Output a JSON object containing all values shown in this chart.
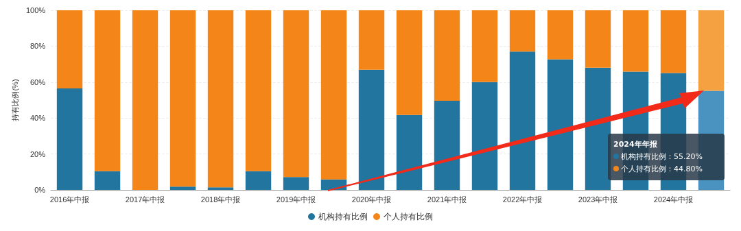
{
  "chart_data": {
    "type": "bar",
    "stacked": true,
    "ylabel": "持有比例(%)",
    "categories": [
      "2016年中报",
      null,
      "2017年中报",
      null,
      "2018年中报",
      null,
      "2019年中报",
      null,
      "2020年中报",
      null,
      "2021年中报",
      null,
      "2022年中报",
      null,
      "2023年中报",
      null,
      "2024年中报",
      null
    ],
    "series": [
      {
        "name": "机构持有比例",
        "color": "#21759f",
        "colors": [
          "#21759f",
          "#21759f",
          "#21759f",
          "#21759f",
          "#21759f",
          "#21759f",
          "#21759f",
          "#21759f",
          "#21759f",
          "#21759f",
          "#21759f",
          "#21759f",
          "#21759f",
          "#21759f",
          "#21759f",
          "#21759f",
          "#21759f",
          "#4a93c0"
        ],
        "values": [
          56.5,
          10.4,
          0,
          1.8,
          1.4,
          10.4,
          7.2,
          5.8,
          66.9,
          41.7,
          49.6,
          60,
          77,
          72.7,
          68,
          65.8,
          65.1,
          55.2
        ]
      },
      {
        "name": "个人持有比例",
        "color": "#f48619",
        "colors": [
          "#f48619",
          "#f48619",
          "#f48619",
          "#f48619",
          "#f48619",
          "#f48619",
          "#f48619",
          "#f48619",
          "#f48619",
          "#f48619",
          "#f48619",
          "#f48619",
          "#f48619",
          "#f48619",
          "#f48619",
          "#f48619",
          "#f48619",
          "#f5a142"
        ],
        "values": [
          43.5,
          89.6,
          100,
          98.2,
          98.6,
          89.6,
          92.8,
          94.2,
          33.1,
          58.3,
          50.4,
          40,
          23,
          27.3,
          32,
          34.2,
          34.9,
          44.8
        ]
      }
    ],
    "ylim": [
      0,
      100
    ],
    "yticks": [
      {
        "value": 0,
        "label": "0%"
      },
      {
        "value": 20,
        "label": "20%"
      },
      {
        "value": 40,
        "label": "40%"
      },
      {
        "value": 60,
        "label": "60%"
      },
      {
        "value": 80,
        "label": "80%"
      },
      {
        "value": 100,
        "label": "100%"
      }
    ],
    "grid": "y",
    "legend": "bottom",
    "annotations": [
      "2024年年报",
      "机构持有比例：55.20%",
      "个人持有比例：44.80%"
    ]
  }
}
